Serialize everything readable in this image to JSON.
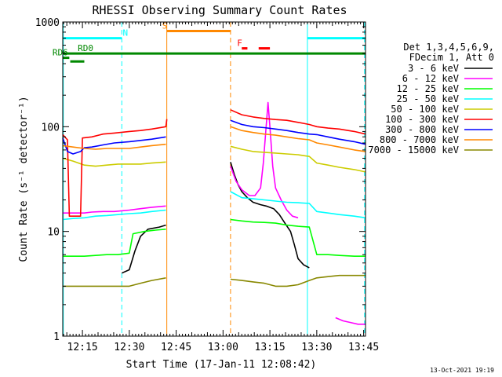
{
  "chart_data": {
    "type": "line",
    "title": "RHESSI Observing Summary Count Rates",
    "xlabel": "Start Time (17-Jan-11 12:08:42)",
    "ylabel": "Count Rate (s⁻¹ detector⁻¹)",
    "yscale": "log",
    "ylim": [
      1,
      1000
    ],
    "xlim": [
      12.145,
      13.76
    ],
    "x_unit": "hours UT (17-Jan-11)",
    "x_ticks": [
      {
        "x": 12.25,
        "label": "12:15"
      },
      {
        "x": 12.5,
        "label": "12:30"
      },
      {
        "x": 12.75,
        "label": "12:45"
      },
      {
        "x": 13.0,
        "label": "13:00"
      },
      {
        "x": 13.25,
        "label": "13:15"
      },
      {
        "x": 13.5,
        "label": "13:30"
      },
      {
        "x": 13.75,
        "label": "13:45"
      }
    ],
    "y_ticks": [
      {
        "y": 1,
        "label": "1"
      },
      {
        "y": 10,
        "label": "10"
      },
      {
        "y": 100,
        "label": "100"
      },
      {
        "y": 1000,
        "label": "1000"
      }
    ],
    "legend_position": "right",
    "legend_header": [
      "Det 1,3,4,5,6,9,",
      "FDecim 1, Att 0"
    ],
    "timestamp": "13-Oct-2021 19:19",
    "series": [
      {
        "name": "3 - 6 keV",
        "color": "#000000",
        "segments": [
          [
            [
              12.46,
              4.0
            ],
            [
              12.5,
              4.3
            ],
            [
              12.53,
              6.5
            ],
            [
              12.56,
              9.0
            ],
            [
              12.6,
              10.5
            ],
            [
              12.66,
              11.0
            ],
            [
              12.695,
              11.5
            ]
          ],
          [
            [
              13.04,
              46
            ],
            [
              13.06,
              35
            ],
            [
              13.08,
              28
            ],
            [
              13.1,
              24
            ],
            [
              13.13,
              21
            ],
            [
              13.16,
              19
            ],
            [
              13.2,
              18
            ],
            [
              13.23,
              17.5
            ],
            [
              13.27,
              16.5
            ],
            [
              13.3,
              14.5
            ],
            [
              13.33,
              12
            ],
            [
              13.36,
              10
            ],
            [
              13.38,
              7.5
            ],
            [
              13.4,
              5.5
            ],
            [
              13.43,
              4.8
            ],
            [
              13.46,
              4.5
            ]
          ]
        ]
      },
      {
        "name": "6 - 12 keV",
        "color": "#ff00ff",
        "segments": [
          [
            [
              12.145,
              15
            ],
            [
              12.2,
              15
            ],
            [
              12.26,
              15
            ],
            [
              12.3,
              15.3
            ],
            [
              12.36,
              15.5
            ],
            [
              12.42,
              15.5
            ],
            [
              12.5,
              16
            ],
            [
              12.56,
              16.5
            ],
            [
              12.62,
              17
            ],
            [
              12.695,
              17.5
            ]
          ],
          [
            [
              13.04,
              42
            ],
            [
              13.07,
              30
            ],
            [
              13.1,
              25
            ],
            [
              13.14,
              22
            ],
            [
              13.17,
              22
            ],
            [
              13.2,
              26
            ],
            [
              13.215,
              45
            ],
            [
              13.23,
              100
            ],
            [
              13.24,
              170
            ],
            [
              13.25,
              100
            ],
            [
              13.265,
              42
            ],
            [
              13.28,
              26
            ],
            [
              13.31,
              20
            ],
            [
              13.34,
              16
            ],
            [
              13.37,
              14
            ],
            [
              13.4,
              13.5
            ]
          ],
          [
            [
              13.6,
              1.5
            ],
            [
              13.64,
              1.4
            ],
            [
              13.68,
              1.35
            ],
            [
              13.72,
              1.3
            ],
            [
              13.76,
              1.3
            ]
          ]
        ]
      },
      {
        "name": "12 - 25 keV",
        "color": "#00ff00",
        "segments": [
          [
            [
              12.145,
              5.8
            ],
            [
              12.2,
              5.8
            ],
            [
              12.26,
              5.8
            ],
            [
              12.32,
              5.9
            ],
            [
              12.38,
              6.0
            ],
            [
              12.44,
              6.0
            ],
            [
              12.5,
              6.2
            ],
            [
              12.52,
              9.5
            ],
            [
              12.58,
              10
            ],
            [
              12.64,
              10.3
            ],
            [
              12.695,
              10.5
            ]
          ],
          [
            [
              13.04,
              13
            ],
            [
              13.1,
              12.6
            ],
            [
              13.16,
              12.3
            ],
            [
              13.22,
              12.2
            ],
            [
              13.28,
              12
            ],
            [
              13.34,
              11.5
            ],
            [
              13.4,
              11.2
            ],
            [
              13.46,
              11
            ],
            [
              13.5,
              6.0
            ],
            [
              13.56,
              6.0
            ],
            [
              13.62,
              5.9
            ],
            [
              13.7,
              5.8
            ],
            [
              13.76,
              5.8
            ]
          ]
        ]
      },
      {
        "name": "25 - 50 keV",
        "color": "#00ffff",
        "segments": [
          [
            [
              12.145,
              13
            ],
            [
              12.2,
              13.3
            ],
            [
              12.26,
              13.5
            ],
            [
              12.32,
              14
            ],
            [
              12.38,
              14.2
            ],
            [
              12.44,
              14.5
            ],
            [
              12.5,
              14.8
            ],
            [
              12.56,
              15
            ],
            [
              12.62,
              15.5
            ],
            [
              12.695,
              16
            ]
          ],
          [
            [
              13.04,
              24
            ],
            [
              13.1,
              21
            ],
            [
              13.16,
              20.5
            ],
            [
              13.22,
              20
            ],
            [
              13.28,
              19.5
            ],
            [
              13.34,
              19
            ],
            [
              13.4,
              18.8
            ],
            [
              13.46,
              18.5
            ],
            [
              13.5,
              15.5
            ],
            [
              13.56,
              15
            ],
            [
              13.62,
              14.5
            ],
            [
              13.7,
              14
            ],
            [
              13.76,
              13.5
            ]
          ]
        ]
      },
      {
        "name": "50 - 100 keV",
        "color": "#cccc00",
        "segments": [
          [
            [
              12.145,
              50
            ],
            [
              12.2,
              47
            ],
            [
              12.26,
              43
            ],
            [
              12.32,
              42
            ],
            [
              12.38,
              43
            ],
            [
              12.44,
              44
            ],
            [
              12.5,
              44
            ],
            [
              12.56,
              44
            ],
            [
              12.62,
              45
            ],
            [
              12.695,
              46
            ]
          ],
          [
            [
              13.04,
              65
            ],
            [
              13.1,
              61
            ],
            [
              13.16,
              58
            ],
            [
              13.22,
              57
            ],
            [
              13.28,
              56
            ],
            [
              13.34,
              55
            ],
            [
              13.4,
              54
            ],
            [
              13.46,
              52
            ],
            [
              13.5,
              45
            ],
            [
              13.56,
              43
            ],
            [
              13.62,
              41
            ],
            [
              13.7,
              39
            ],
            [
              13.76,
              37
            ]
          ]
        ]
      },
      {
        "name": "100 - 300 keV",
        "color": "#ff0000",
        "segments": [
          [
            [
              12.145,
              84
            ],
            [
              12.17,
              75
            ],
            [
              12.18,
              14
            ],
            [
              12.2,
              14
            ],
            [
              12.24,
              14
            ],
            [
              12.25,
              78
            ],
            [
              12.3,
              80
            ],
            [
              12.36,
              85
            ],
            [
              12.42,
              87
            ],
            [
              12.5,
              90
            ],
            [
              12.56,
              92
            ],
            [
              12.62,
              95
            ],
            [
              12.695,
              100
            ],
            [
              12.7,
              118
            ]
          ],
          [
            [
              13.04,
              145
            ],
            [
              13.1,
              130
            ],
            [
              13.16,
              124
            ],
            [
              13.22,
              120
            ],
            [
              13.28,
              117
            ],
            [
              13.34,
              115
            ],
            [
              13.4,
              110
            ],
            [
              13.46,
              105
            ],
            [
              13.5,
              100
            ],
            [
              13.56,
              97
            ],
            [
              13.62,
              95
            ],
            [
              13.7,
              90
            ],
            [
              13.76,
              85
            ]
          ]
        ]
      },
      {
        "name": "300 - 800 keV",
        "color": "#0000ff",
        "segments": [
          [
            [
              12.145,
              78
            ],
            [
              12.17,
              58
            ],
            [
              12.2,
              55
            ],
            [
              12.24,
              58
            ],
            [
              12.26,
              63
            ],
            [
              12.3,
              64
            ],
            [
              12.36,
              67
            ],
            [
              12.42,
              70
            ],
            [
              12.5,
              72
            ],
            [
              12.56,
              74
            ],
            [
              12.62,
              76
            ],
            [
              12.695,
              80
            ]
          ],
          [
            [
              13.04,
              115
            ],
            [
              13.1,
              105
            ],
            [
              13.16,
              100
            ],
            [
              13.22,
              98
            ],
            [
              13.28,
              95
            ],
            [
              13.34,
              92
            ],
            [
              13.4,
              88
            ],
            [
              13.46,
              85
            ],
            [
              13.5,
              84
            ],
            [
              13.56,
              80
            ],
            [
              13.62,
              76
            ],
            [
              13.7,
              72
            ],
            [
              13.76,
              68
            ]
          ]
        ]
      },
      {
        "name": "800 - 7000 keV",
        "color": "#ff8800",
        "segments": [
          [
            [
              12.145,
              66
            ],
            [
              12.2,
              64
            ],
            [
              12.26,
              62
            ],
            [
              12.32,
              61
            ],
            [
              12.38,
              62
            ],
            [
              12.44,
              62
            ],
            [
              12.5,
              62
            ],
            [
              12.56,
              64
            ],
            [
              12.62,
              66
            ],
            [
              12.695,
              68
            ]
          ],
          [
            [
              13.04,
              100
            ],
            [
              13.1,
              92
            ],
            [
              13.16,
              88
            ],
            [
              13.22,
              85
            ],
            [
              13.28,
              83
            ],
            [
              13.34,
              80
            ],
            [
              13.4,
              77
            ],
            [
              13.46,
              75
            ],
            [
              13.5,
              70
            ],
            [
              13.56,
              67
            ],
            [
              13.62,
              64
            ],
            [
              13.7,
              60
            ],
            [
              13.76,
              58
            ]
          ]
        ]
      },
      {
        "name": "7000 - 15000 keV",
        "color": "#888800",
        "segments": [
          [
            [
              12.145,
              3.0
            ],
            [
              12.2,
              3.0
            ],
            [
              12.26,
              3.0
            ],
            [
              12.32,
              3.0
            ],
            [
              12.38,
              3.0
            ],
            [
              12.44,
              3.0
            ],
            [
              12.5,
              3.0
            ],
            [
              12.56,
              3.2
            ],
            [
              12.62,
              3.4
            ],
            [
              12.695,
              3.6
            ]
          ],
          [
            [
              13.04,
              3.5
            ],
            [
              13.1,
              3.4
            ],
            [
              13.16,
              3.3
            ],
            [
              13.22,
              3.2
            ],
            [
              13.28,
              3.0
            ],
            [
              13.34,
              3.0
            ],
            [
              13.4,
              3.1
            ],
            [
              13.46,
              3.4
            ],
            [
              13.5,
              3.6
            ],
            [
              13.56,
              3.7
            ],
            [
              13.62,
              3.8
            ],
            [
              13.7,
              3.8
            ],
            [
              13.76,
              3.8
            ]
          ]
        ]
      }
    ],
    "vertical_lines": [
      {
        "x": 12.148,
        "color": "#00ffff",
        "style": "solid"
      },
      {
        "x": 12.46,
        "color": "#00ffff",
        "style": "dashed"
      },
      {
        "x": 12.7,
        "color": "#ff8800",
        "style": "solid"
      },
      {
        "x": 13.04,
        "color": "#ff8800",
        "style": "dashed"
      },
      {
        "x": 13.45,
        "color": "#00ffff",
        "style": "solid"
      },
      {
        "x": 13.755,
        "color": "#00ffff",
        "style": "dashed"
      }
    ],
    "status_bars": [
      {
        "label": "N",
        "color": "#00ffff",
        "y": 700,
        "x0": 12.145,
        "x1": 12.46,
        "label_x": 12.465
      },
      {
        "label": "N",
        "color": "#00ffff",
        "y": 700,
        "x0": 13.45,
        "x1": 13.76,
        "label_x": null
      },
      {
        "label": "S",
        "color": "#ff8800",
        "y": 820,
        "x0": 12.7,
        "x1": 13.04,
        "label_x": 12.675
      },
      {
        "label": "F",
        "color": "#ff0000",
        "y": 560,
        "x0": 13.1,
        "x1": 13.13,
        "label_x": 13.075
      },
      {
        "label": "F",
        "color": "#ff0000",
        "y": 560,
        "x0": 13.19,
        "x1": 13.25,
        "label_x": null
      },
      {
        "label": "RD0",
        "color": "#008800",
        "y": 500,
        "x0": 12.145,
        "x1": 13.76,
        "label_x": 12.225
      },
      {
        "label": "RD6",
        "color": "#008800",
        "y": 455,
        "x0": 12.145,
        "x1": 12.18,
        "label_x": 12.09
      },
      {
        "label": "",
        "color": "#008800",
        "y": 420,
        "x0": 12.185,
        "x1": 12.26,
        "label_x": null
      }
    ]
  },
  "colors": {
    "axes": "#000000",
    "background": "#ffffff"
  }
}
